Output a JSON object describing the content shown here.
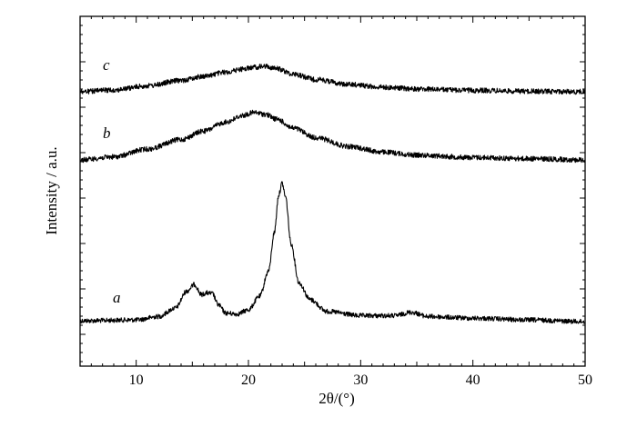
{
  "chart_data": {
    "type": "line",
    "xlabel": "2θ/(°)",
    "ylabel": "Intensity / a.u.",
    "xlim": [
      5,
      50
    ],
    "x_ticks": [
      10,
      20,
      30,
      40,
      50
    ],
    "y_ticks_labeled": false,
    "grid": false,
    "legend": "none",
    "line_color": "#000000",
    "series": [
      {
        "name": "a",
        "x": [
          5,
          10,
          12,
          13.5,
          14.5,
          15.2,
          15.8,
          16.3,
          16.8,
          17.3,
          18,
          19,
          20,
          21,
          21.8,
          22.3,
          22.7,
          23.0,
          23.3,
          23.8,
          24.5,
          25.5,
          27,
          30,
          33,
          34.5,
          36,
          40,
          45,
          50
        ],
        "y": [
          0.1,
          0.2,
          0.6,
          1.6,
          3.6,
          4.4,
          3.2,
          3.4,
          3.3,
          2.0,
          1.0,
          0.9,
          1.4,
          3.0,
          6.0,
          10.5,
          15.0,
          16.4,
          14.8,
          9.2,
          4.6,
          2.6,
          1.2,
          0.7,
          0.7,
          1.1,
          0.6,
          0.4,
          0.2,
          0.0
        ]
      },
      {
        "name": "b",
        "x": [
          5,
          8,
          11,
          14,
          16,
          18,
          19.5,
          20.5,
          21.5,
          22.5,
          24,
          26,
          29,
          32,
          35,
          40,
          45,
          50
        ],
        "y": [
          0.0,
          0.5,
          1.8,
          3.4,
          4.8,
          6.3,
          7.4,
          7.9,
          7.6,
          6.8,
          5.3,
          3.7,
          2.2,
          1.3,
          0.8,
          0.4,
          0.2,
          0.0
        ]
      },
      {
        "name": "c",
        "x": [
          5,
          8,
          11,
          14,
          16,
          18,
          19.5,
          20.5,
          21.5,
          22.5,
          24,
          26,
          29,
          32,
          35,
          40,
          45,
          50
        ],
        "y": [
          0.0,
          0.4,
          1.3,
          2.5,
          3.4,
          4.3,
          5.0,
          5.4,
          5.6,
          5.1,
          3.9,
          2.7,
          1.6,
          1.0,
          0.6,
          0.3,
          0.1,
          0.0
        ]
      }
    ]
  }
}
